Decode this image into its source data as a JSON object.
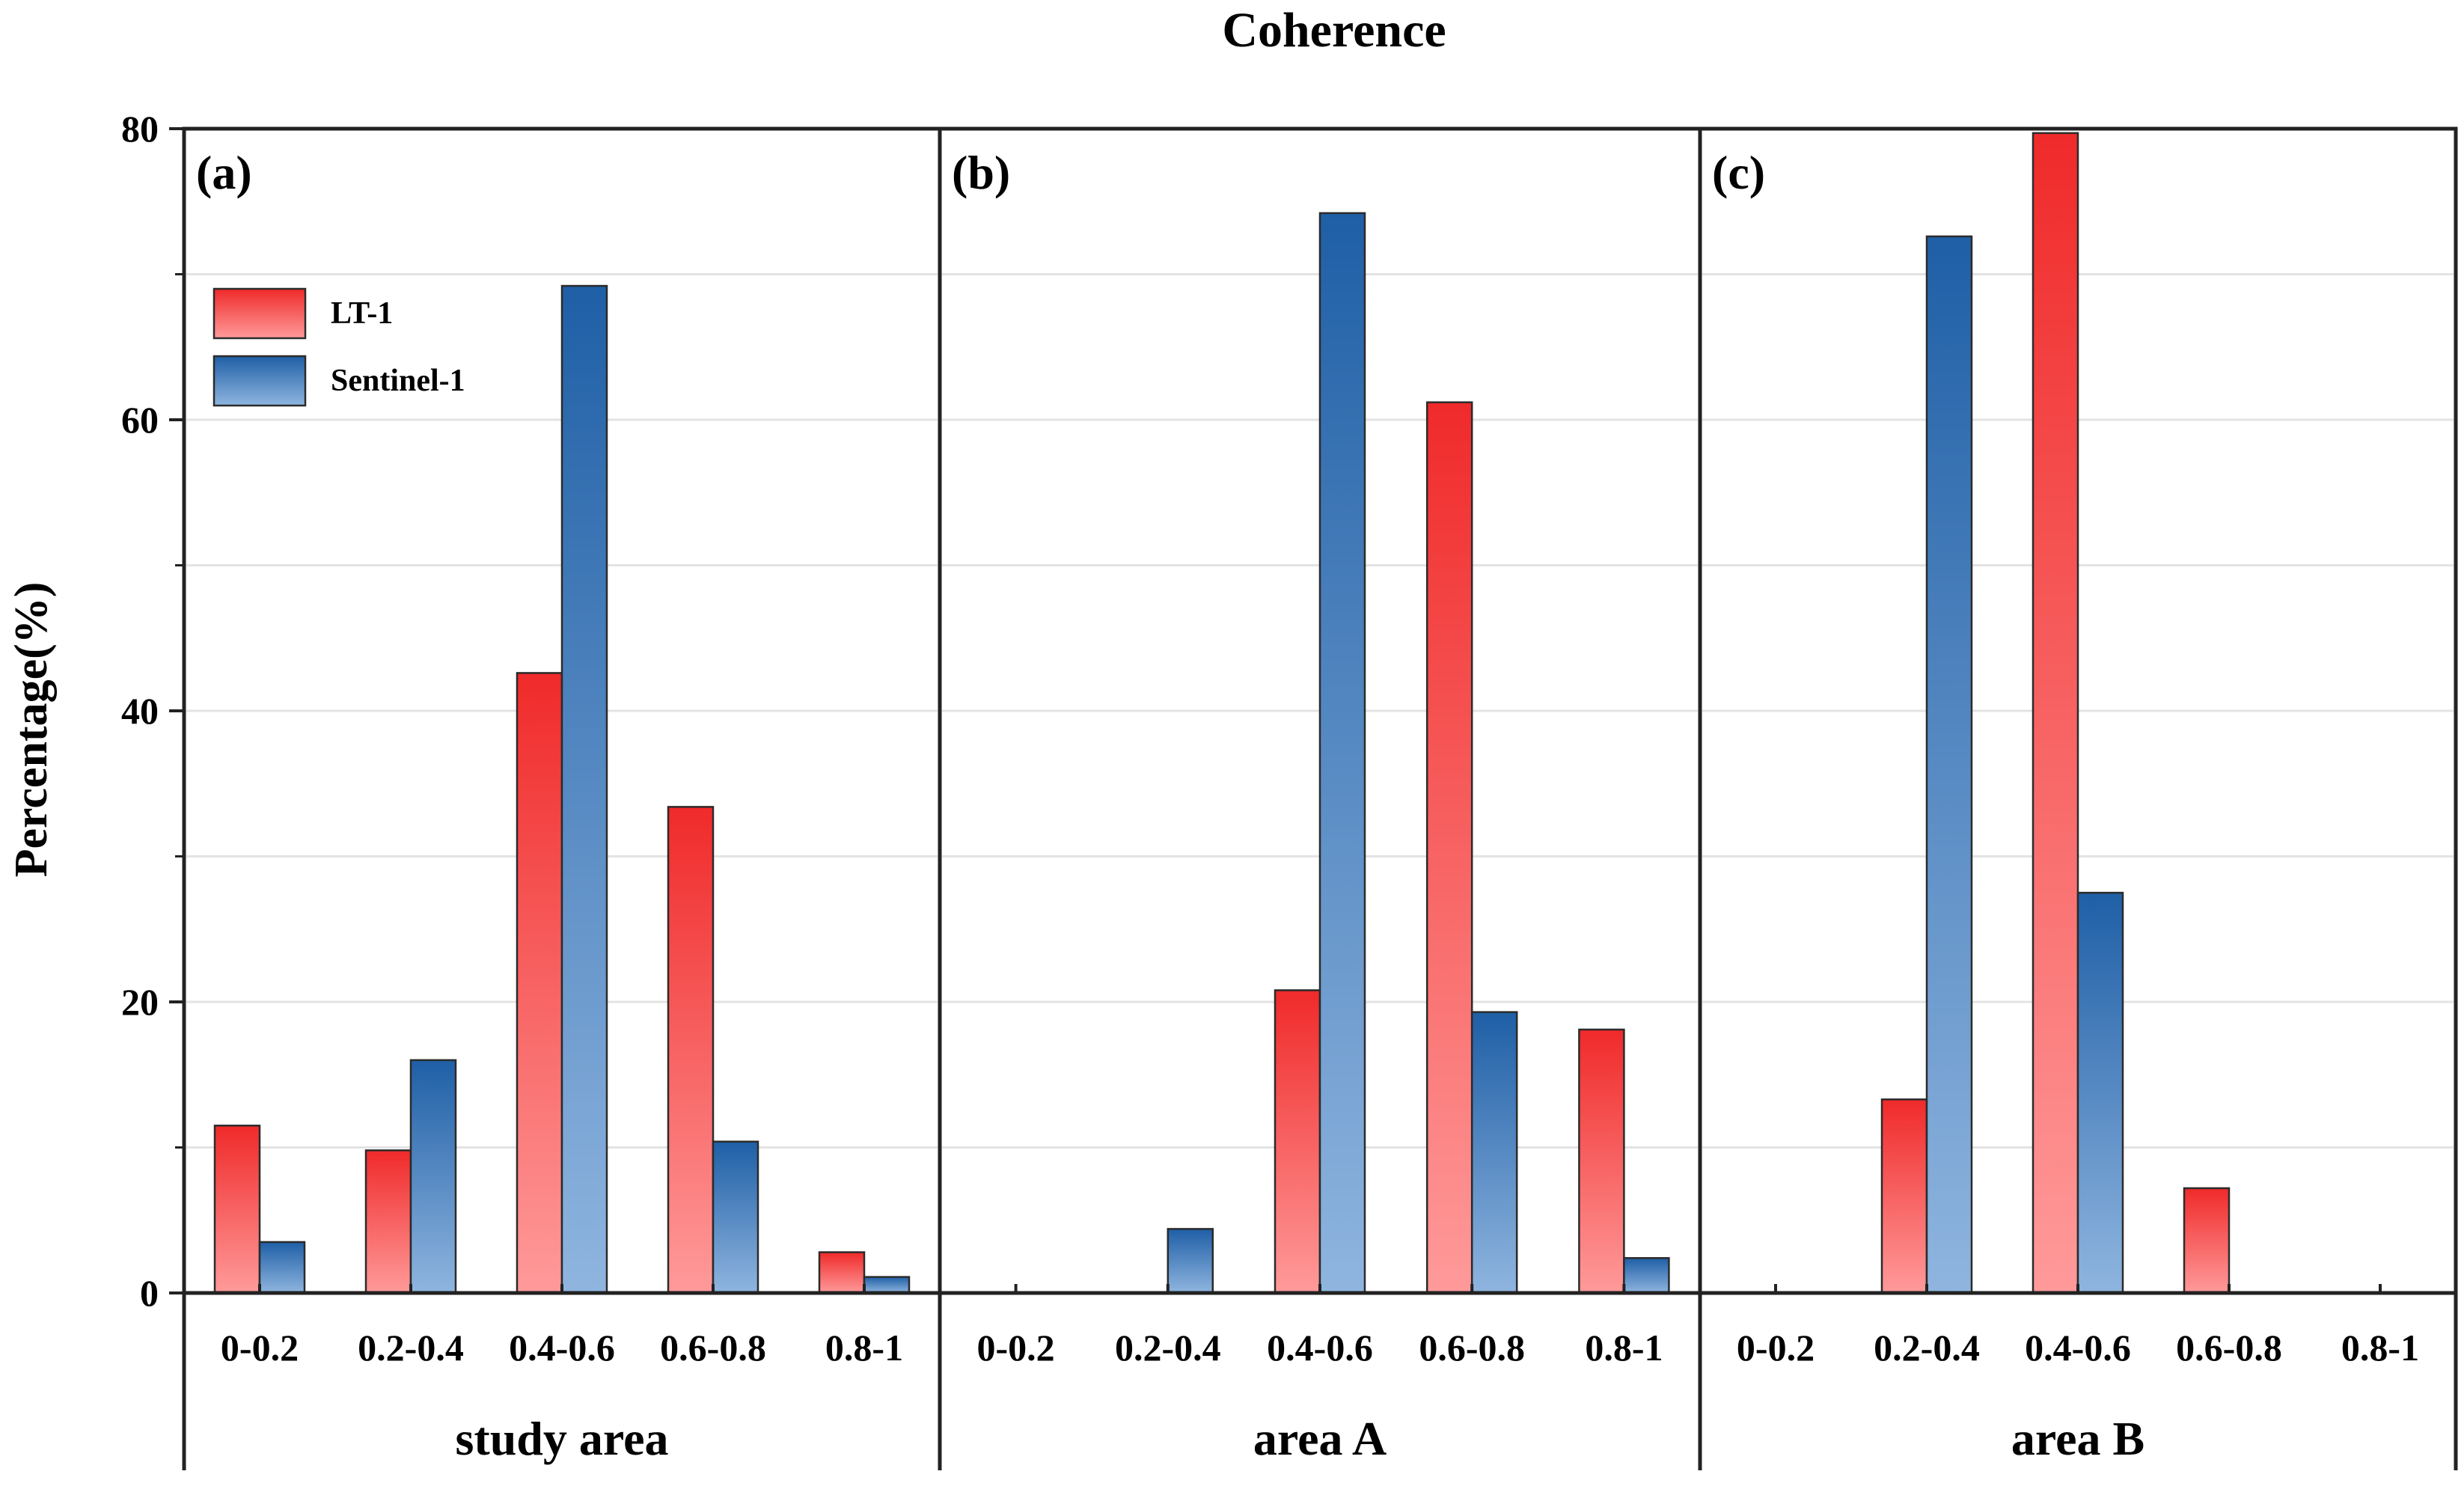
{
  "chart_data": {
    "type": "bar",
    "title": "Coherence",
    "ylabel": "Percentage(%)",
    "ylim": [
      0,
      80
    ],
    "yticks": [
      "0",
      "20",
      "40",
      "60",
      "80"
    ],
    "categories": [
      "0-0.2",
      "0.2-0.4",
      "0.4-0.6",
      "0.6-0.8",
      "0.8-1"
    ],
    "legend": {
      "position": "top-left of panel (a)",
      "entries": [
        "LT-1",
        "Sentinel-1"
      ]
    },
    "colors": {
      "lt1_top": "#f02a2a",
      "lt1_bottom": "#ff9a9a",
      "s1_top": "#1f5fa6",
      "s1_bottom": "#8fb5df"
    },
    "panels": [
      {
        "label": "(a)",
        "name": "study area",
        "series": [
          {
            "name": "LT-1",
            "values": [
              11.5,
              9.8,
              42.6,
              33.4,
              2.8
            ]
          },
          {
            "name": "Sentinel-1",
            "values": [
              3.5,
              16.0,
              69.2,
              10.4,
              1.1
            ]
          }
        ]
      },
      {
        "label": "(b)",
        "name": "area A",
        "series": [
          {
            "name": "LT-1",
            "values": [
              0,
              0,
              20.8,
              61.2,
              18.1
            ]
          },
          {
            "name": "Sentinel-1",
            "values": [
              0,
              4.4,
              74.2,
              19.3,
              2.4
            ]
          }
        ]
      },
      {
        "label": "(c)",
        "name": "area B",
        "series": [
          {
            "name": "LT-1",
            "values": [
              0,
              13.3,
              79.7,
              7.2,
              0
            ]
          },
          {
            "name": "Sentinel-1",
            "values": [
              0,
              72.6,
              27.5,
              0,
              0
            ]
          }
        ]
      }
    ]
  }
}
